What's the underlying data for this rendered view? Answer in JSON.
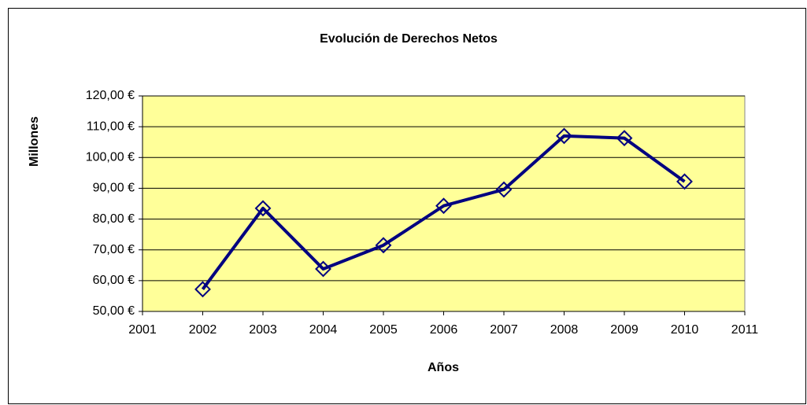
{
  "chart_data": {
    "type": "line",
    "title": "Evolución de Derechos Netos",
    "x_label": "Años",
    "y_label": "Millones",
    "x": [
      2002,
      2003,
      2004,
      2005,
      2006,
      2007,
      2008,
      2009,
      2010
    ],
    "values": [
      57.2,
      83.5,
      63.8,
      71.5,
      84.3,
      89.6,
      107,
      106.3,
      92.2
    ],
    "color": "#000080",
    "plot_background": "#ffff99",
    "grid": true,
    "xlim": [
      2001,
      2011
    ],
    "xticks": [
      2001,
      2002,
      2003,
      2004,
      2005,
      2006,
      2007,
      2008,
      2009,
      2010,
      2011
    ],
    "ylim": [
      50,
      120
    ],
    "yticks": [
      {
        "value": 50,
        "label": "50,00 €"
      },
      {
        "value": 60,
        "label": "60,00 €"
      },
      {
        "value": 70,
        "label": "70,00 €"
      },
      {
        "value": 80,
        "label": "80,00 €"
      },
      {
        "value": 90,
        "label": "90,00 €"
      },
      {
        "value": 100,
        "label": "100,00 €"
      },
      {
        "value": 110,
        "label": "110,00 €"
      },
      {
        "value": 120,
        "label": "120,00 €"
      }
    ]
  }
}
